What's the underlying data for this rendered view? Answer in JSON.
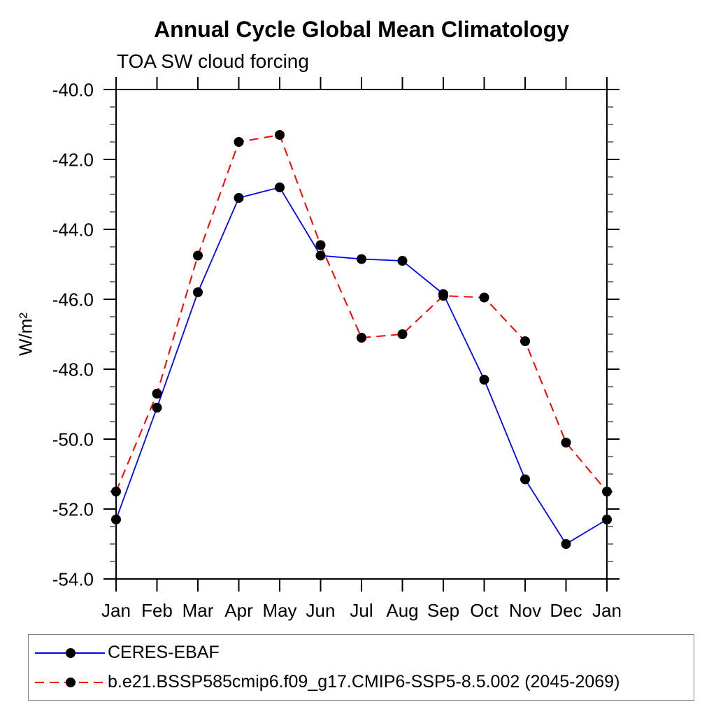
{
  "title": "Annual Cycle Global Mean Climatology",
  "subtitle": "TOA SW cloud forcing",
  "ylabel": "W/m²",
  "chart_data": {
    "type": "line",
    "title": "Annual Cycle Global Mean Climatology",
    "subtitle": "TOA SW cloud forcing",
    "xlabel": "",
    "ylabel": "W/m²",
    "categories": [
      "Jan",
      "Feb",
      "Mar",
      "Apr",
      "May",
      "Jun",
      "Jul",
      "Aug",
      "Sep",
      "Oct",
      "Nov",
      "Dec",
      "Jan"
    ],
    "series": [
      {
        "name": "CERES-EBAF",
        "color": "#0000ff",
        "line_style": "solid",
        "marker": "filled-circle",
        "marker_color": "#000000",
        "values": [
          -52.3,
          -49.1,
          -45.8,
          -43.1,
          -42.8,
          -44.75,
          -44.85,
          -44.9,
          -45.85,
          -48.3,
          -51.15,
          -53.0,
          -52.3
        ]
      },
      {
        "name": "b.e21.BSSP585cmip6.f09_g17.CMIP6-SSP5-8.5.002 (2045-2069)",
        "color": "#ff0000",
        "line_style": "dashed",
        "marker": "filled-circle",
        "marker_color": "#000000",
        "values": [
          -51.5,
          -48.7,
          -44.75,
          -41.5,
          -41.3,
          -44.45,
          -47.1,
          -47.0,
          -45.9,
          -45.95,
          -47.2,
          -50.1,
          -51.5
        ]
      }
    ],
    "ylim": [
      -54.0,
      -40.0
    ],
    "yticks": [
      -40,
      -42,
      -44,
      -46,
      -48,
      -50,
      -52,
      -54
    ],
    "ytick_labels": [
      "-40.0",
      "-42.0",
      "-44.0",
      "-46.0",
      "-48.0",
      "-50.0",
      "-52.0",
      "-54.0"
    ],
    "ytick_minor_step": 0.5,
    "grid": false,
    "tick_direction": "out",
    "legend_position": "bottom-left-box"
  }
}
